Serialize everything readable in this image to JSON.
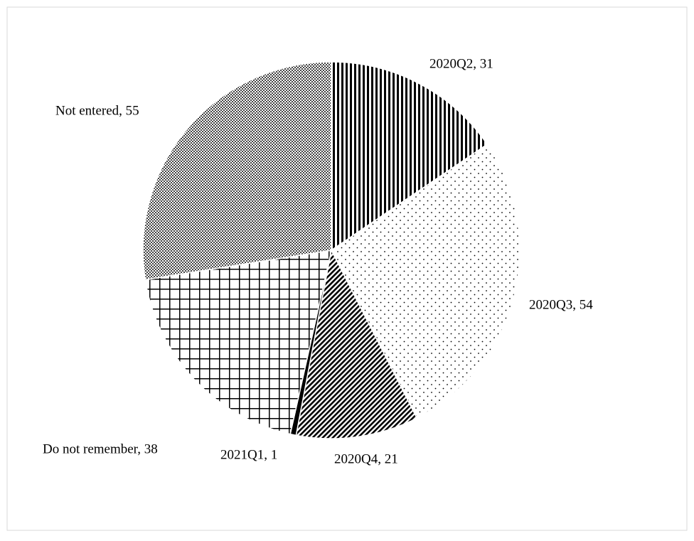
{
  "chart_data": {
    "type": "pie",
    "values": [
      31,
      54,
      21,
      1,
      38,
      55
    ],
    "value_labels": [
      "2020Q2, 31",
      "2020Q3, 54",
      "2020Q4, 21",
      "2021Q1, 1",
      "Do not remember, 38",
      "Not entered, 55"
    ],
    "patterns": [
      "vertical",
      "dots",
      "diagonal",
      "solid",
      "grid",
      "checker"
    ],
    "color": "#000000"
  }
}
